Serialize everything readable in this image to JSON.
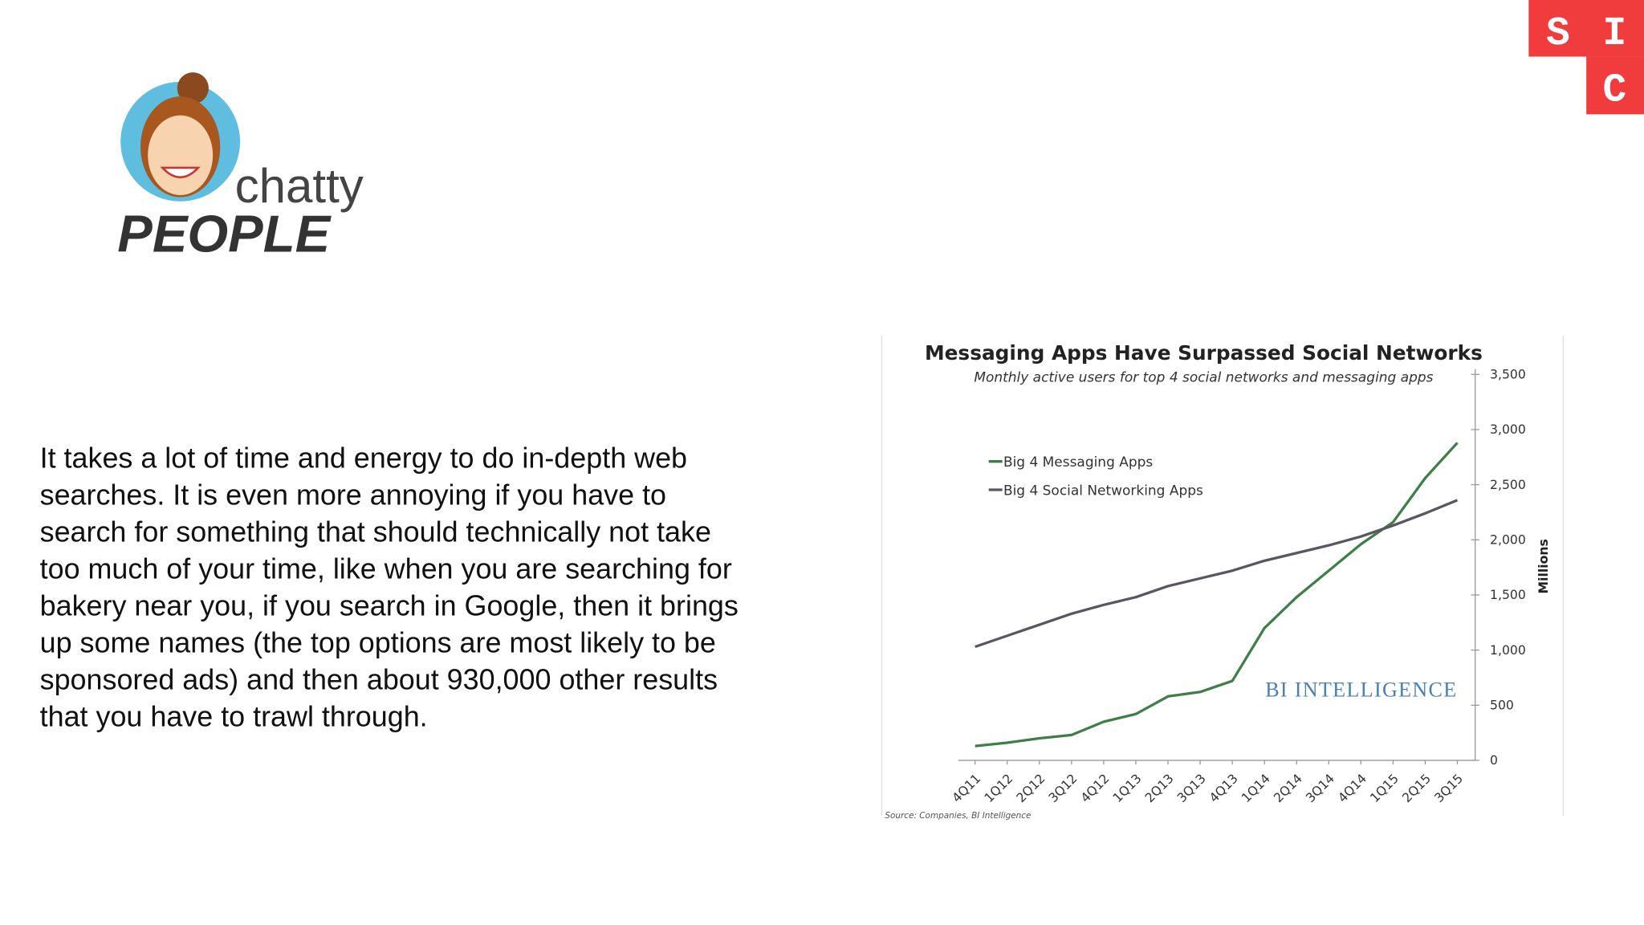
{
  "logo": {
    "word1": "chatty",
    "word2": "PEOPLE"
  },
  "badge": [
    "S",
    "I",
    "C"
  ],
  "body_lines": [
    "It takes a lot of time and energy to do in-depth web",
    "searches. It is even more annoying if you have to",
    "search for something that should technically not take",
    "too much of your time, like when you are searching for",
    "bakery near you, if you search in Google, then it brings",
    "up some names (the top options are most likely to be",
    "sponsored ads) and then about 930,000 other results",
    "that you have to trawl through."
  ],
  "chart_data": {
    "type": "line",
    "title": "Messaging Apps Have Surpassed Social Networks",
    "subtitle": "Monthly active users for top 4 social networks and messaging apps",
    "y_label": "Millions",
    "watermark": "BI INTELLIGENCE",
    "source": "Source: Companies, BI Intelligence",
    "legend": "upper left",
    "categories": [
      "4Q11",
      "1Q12",
      "2Q12",
      "3Q12",
      "4Q12",
      "1Q13",
      "2Q13",
      "3Q13",
      "4Q13",
      "1Q14",
      "2Q14",
      "3Q14",
      "4Q14",
      "1Q15",
      "2Q15",
      "3Q15"
    ],
    "series": [
      {
        "name": "Big 4 Messaging Apps",
        "color": "#3f7f47",
        "values": [
          130,
          160,
          200,
          230,
          350,
          420,
          580,
          620,
          720,
          1200,
          1480,
          1720,
          1960,
          2160,
          2560,
          2880
        ]
      },
      {
        "name": "Big 4 Social Networking Apps",
        "color": "#5a5560",
        "values": [
          1030,
          1130,
          1230,
          1330,
          1410,
          1480,
          1580,
          1650,
          1720,
          1810,
          1880,
          1950,
          2030,
          2130,
          2240,
          2360
        ]
      }
    ],
    "ylim": [
      0,
      3500
    ],
    "yticks": [
      0,
      500,
      {
        "value": 1000,
        "label": "1,000"
      },
      {
        "value": 1500,
        "label": "1,500"
      },
      {
        "value": 2000,
        "label": "2,000"
      },
      {
        "value": 2500,
        "label": "2,500"
      },
      {
        "value": 3000,
        "label": "3,000"
      },
      {
        "value": 3500,
        "label": "3,500"
      }
    ]
  }
}
